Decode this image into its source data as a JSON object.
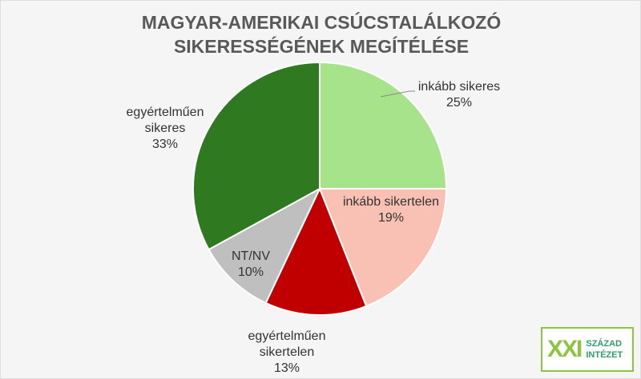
{
  "chart_data": {
    "type": "pie",
    "title": "MAGYAR-AMERIKAI CSÚCSTALÁLKOZÓ SIKERESSÉGÉNEK MEGÍTÉLÉSE",
    "categories": [
      "inkább sikeres",
      "inkább sikertelen",
      "egyértelműen sikertelen",
      "NT/NV",
      "egyértelműen sikeres"
    ],
    "values": [
      25,
      19,
      13,
      10,
      33
    ],
    "value_labels": [
      "25%",
      "19%",
      "13%",
      "10%",
      "33%"
    ],
    "colors": [
      "#a6e38a",
      "#f9c0b4",
      "#c00000",
      "#bfbfbf",
      "#2f7a20"
    ]
  },
  "logo": {
    "mark": "XXI",
    "line1": "SZÁZAD",
    "line2": "INTÉZET"
  }
}
